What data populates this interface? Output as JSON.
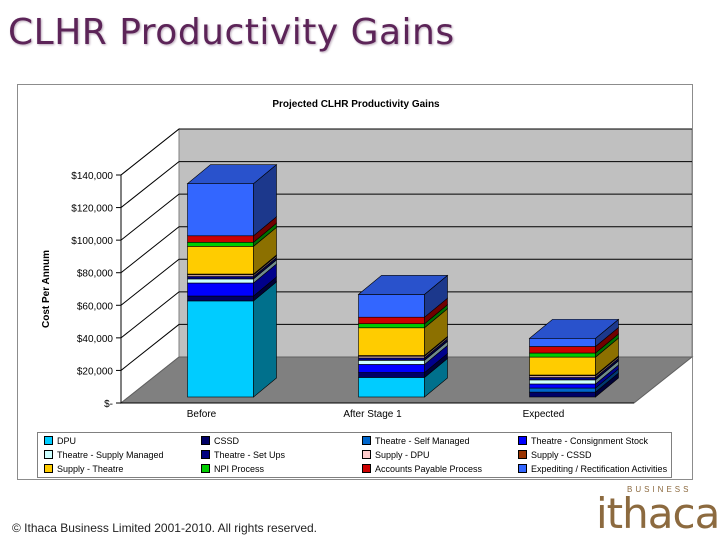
{
  "slide": {
    "title": "CLHR Productivity Gains",
    "footer": "© Ithaca Business Limited 2001-2010.  All rights reserved.",
    "logo_word": "ithaca",
    "logo_business": "BUSINESS"
  },
  "chart_data": {
    "type": "bar",
    "stacked": true,
    "three_d": true,
    "title": "Projected CLHR Productivity Gains",
    "xlabel": "",
    "ylabel": "Cost Per Annum",
    "ylim": [
      0,
      140000
    ],
    "ytick_values": [
      0,
      20000,
      40000,
      60000,
      80000,
      100000,
      120000,
      140000
    ],
    "ytick_labels": [
      "$-",
      "$20,000",
      "$40,000",
      "$60,000",
      "$80,000",
      "$100,000",
      "$120,000",
      "$140,000"
    ],
    "categories": [
      "Before",
      "After Stage 1",
      "Expected"
    ],
    "series": [
      {
        "name": "DPU",
        "color": "#00ccff",
        "values": [
          59000,
          12000,
          0
        ]
      },
      {
        "name": "CSSD",
        "color": "#000066",
        "values": [
          3000,
          3000,
          3000
        ]
      },
      {
        "name": "Theatre - Self Managed",
        "color": "#0066cc",
        "values": [
          0,
          0,
          2500
        ]
      },
      {
        "name": "Theatre - Consignment Stock",
        "color": "#0000ff",
        "values": [
          8000,
          5000,
          2500
        ]
      },
      {
        "name": "Theatre - Supply Managed",
        "color": "#ccffff",
        "values": [
          2500,
          2500,
          2500
        ]
      },
      {
        "name": "Theatre - Set Ups",
        "color": "#000080",
        "values": [
          1500,
          1500,
          1500
        ]
      },
      {
        "name": "Supply - DPU",
        "color": "#ffcccc",
        "values": [
          1000,
          1000,
          1000
        ]
      },
      {
        "name": "Supply - CSSD",
        "color": "#993300",
        "values": [
          500,
          500,
          500
        ]
      },
      {
        "name": "Supply - Theatre",
        "color": "#ffcc00",
        "values": [
          17000,
          17000,
          11000
        ]
      },
      {
        "name": "NPI Process",
        "color": "#00cc00",
        "values": [
          2500,
          2500,
          2500
        ]
      },
      {
        "name": "Accounts Payable Process",
        "color": "#cc0000",
        "values": [
          4000,
          4000,
          4000
        ]
      },
      {
        "name": "Expediting / Rectification Activities",
        "color": "#3366ff",
        "values": [
          32000,
          14000,
          5000
        ]
      }
    ],
    "legend_position": "bottom",
    "grid": true
  }
}
